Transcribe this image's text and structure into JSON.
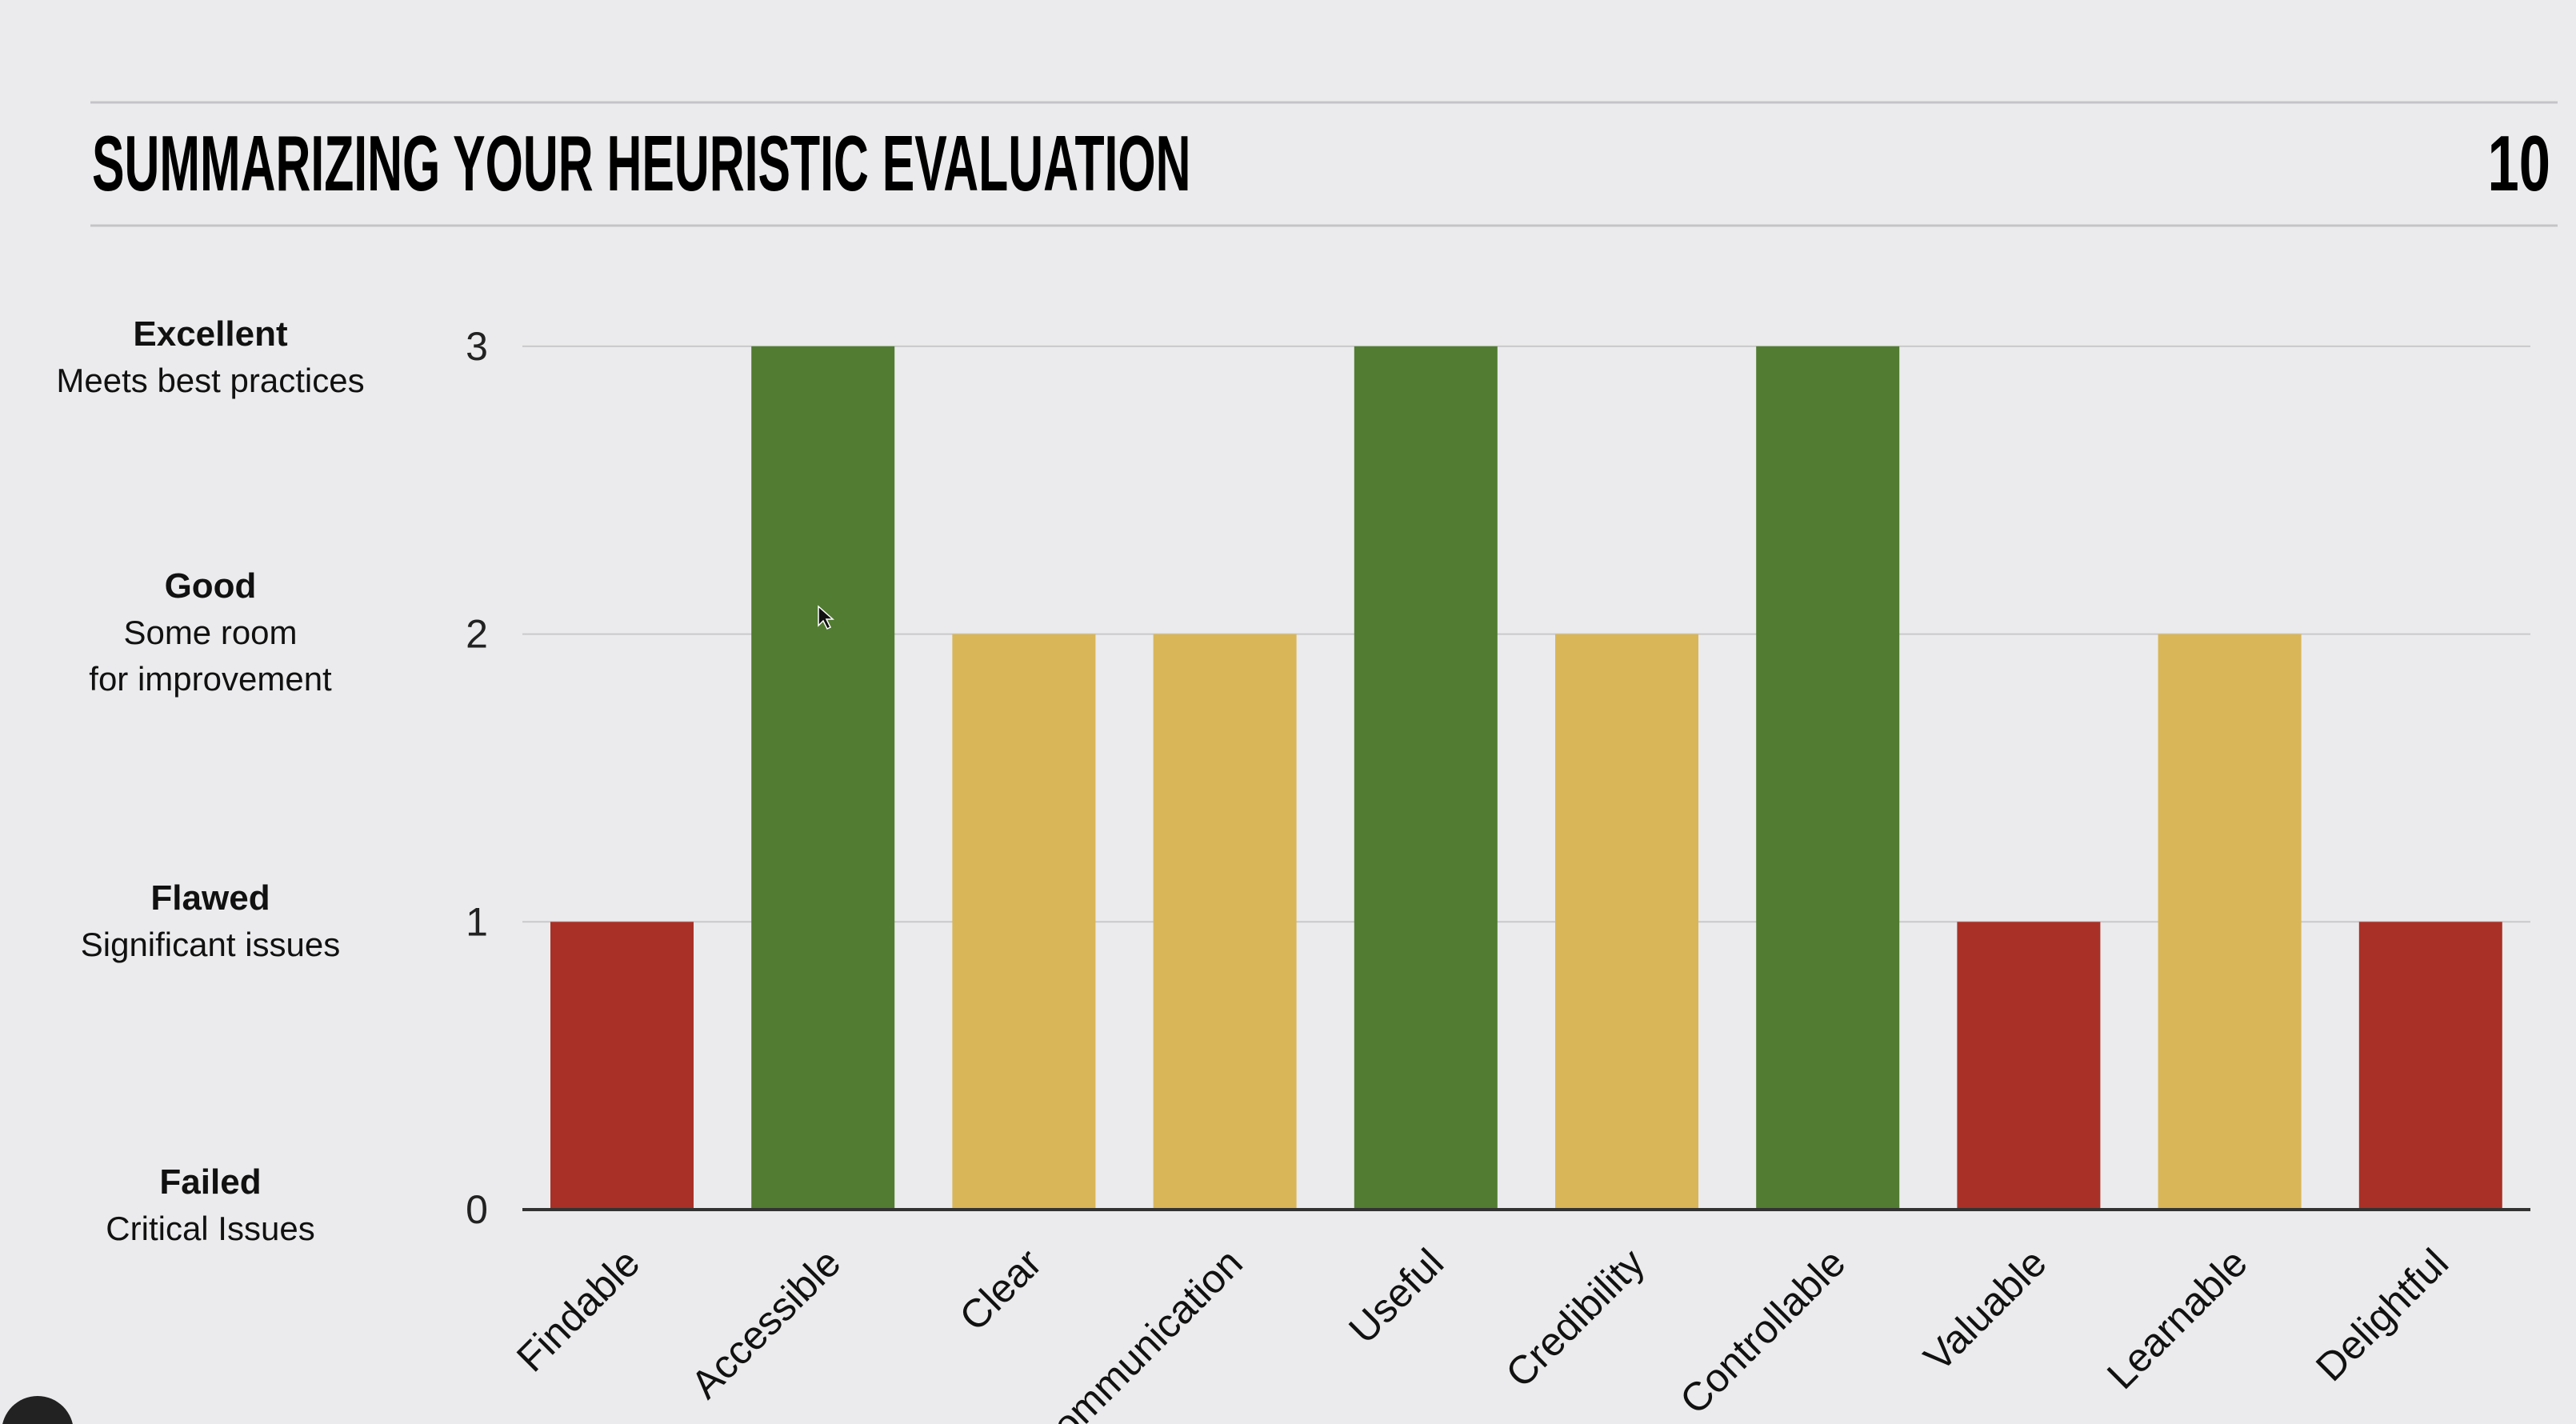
{
  "slide": {
    "title": "SUMMARIZING YOUR HEURISTIC EVALUATION",
    "page_number": "10"
  },
  "levels": [
    {
      "value": 3,
      "name": "Excellent",
      "lines": [
        "Meets best practices"
      ]
    },
    {
      "value": 2,
      "name": "Good",
      "lines": [
        "Some room",
        "for improvement"
      ]
    },
    {
      "value": 1,
      "name": "Flawed",
      "lines": [
        "Significant issues"
      ]
    },
    {
      "value": 0,
      "name": "Failed",
      "lines": [
        "Critical Issues"
      ]
    }
  ],
  "colors": {
    "failed": "#a93026",
    "flawed": "#a93026",
    "good": "#d9b658",
    "excellent": "#517c31",
    "background": "#ebebed"
  },
  "chart_data": {
    "type": "bar",
    "categories": [
      "Findable",
      "Accessible",
      "Clear",
      "Communication",
      "Useful",
      "Credibility",
      "Controllable",
      "Valuable",
      "Learnable",
      "Delightful"
    ],
    "values": [
      1,
      3,
      2,
      2,
      3,
      2,
      3,
      1,
      2,
      1
    ],
    "bar_colors": [
      "#a93026",
      "#517c31",
      "#d9b658",
      "#d9b658",
      "#517c31",
      "#d9b658",
      "#517c31",
      "#a93026",
      "#d9b658",
      "#a93026"
    ],
    "yticks": [
      "0",
      "1",
      "2",
      "3"
    ],
    "ylim": [
      0,
      3
    ],
    "grid": true,
    "title": "",
    "xlabel": "",
    "ylabel": ""
  }
}
